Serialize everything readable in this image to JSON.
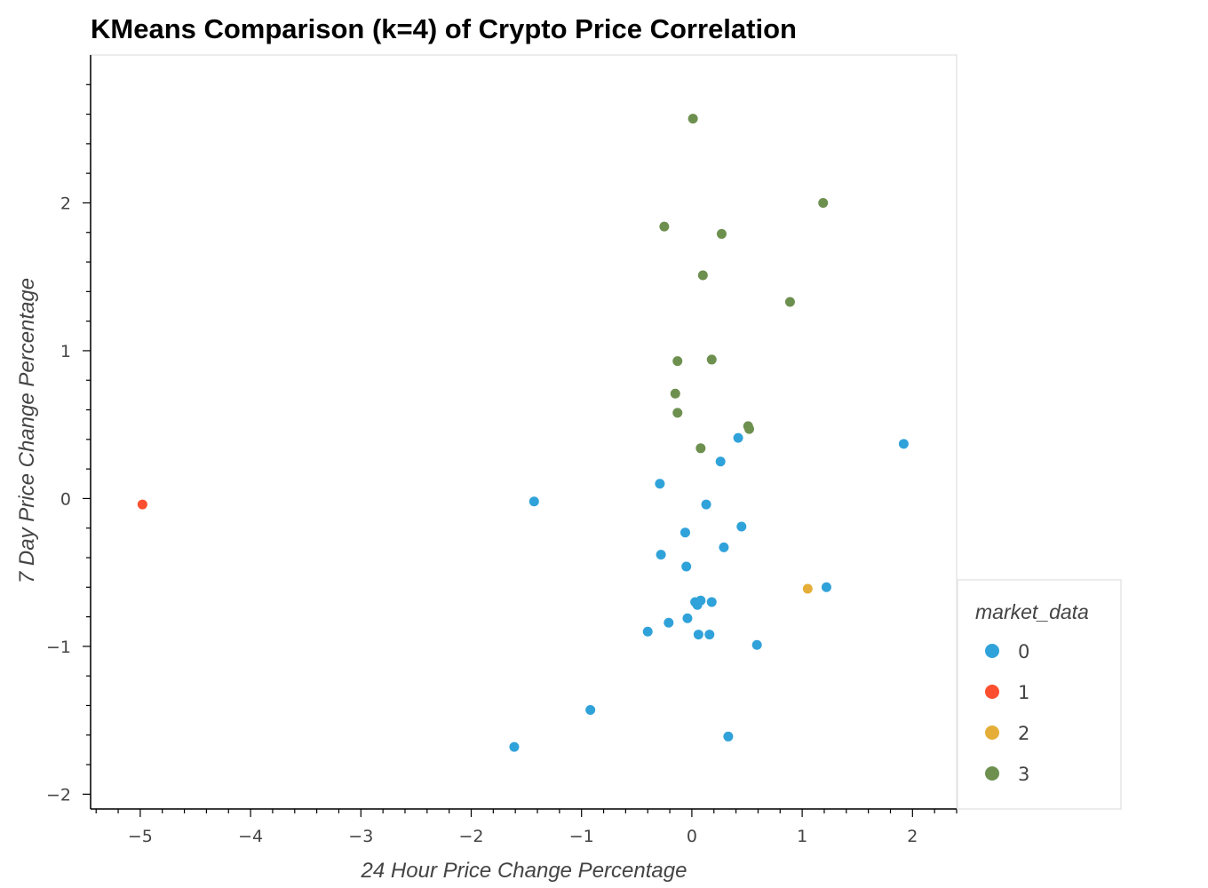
{
  "chart_data": {
    "type": "scatter",
    "title": "KMeans Comparison (k=4) of Crypto Price Correlation",
    "xlabel": "24 Hour Price Change Percentage",
    "ylabel": "7 Day Price Change Percentage",
    "xlim": [
      -5.45,
      2.4
    ],
    "ylim": [
      -2.1,
      3.0
    ],
    "x_ticks": [
      -5,
      -4,
      -3,
      -2,
      -1,
      0,
      1,
      2
    ],
    "y_ticks": [
      -2,
      -1,
      0,
      1,
      2
    ],
    "x_tick_labels": [
      "−5",
      "−4",
      "−3",
      "−2",
      "−1",
      "0",
      "1",
      "2"
    ],
    "y_tick_labels": [
      "−2",
      "−1",
      "0",
      "1",
      "2"
    ],
    "grid": false,
    "legend": {
      "title": "market_data",
      "placement": "right",
      "entries": [
        "0",
        "1",
        "2",
        "3"
      ]
    },
    "series": [
      {
        "name": "0",
        "color": "#30a2da",
        "points": [
          [
            1.92,
            0.37
          ],
          [
            1.22,
            -0.6
          ],
          [
            0.42,
            0.41
          ],
          [
            0.26,
            0.25
          ],
          [
            -0.29,
            0.1
          ],
          [
            0.13,
            -0.04
          ],
          [
            0.45,
            -0.19
          ],
          [
            -0.06,
            -0.23
          ],
          [
            0.29,
            -0.33
          ],
          [
            -0.28,
            -0.38
          ],
          [
            -0.05,
            -0.46
          ],
          [
            0.08,
            -0.69
          ],
          [
            0.03,
            -0.7
          ],
          [
            0.18,
            -0.7
          ],
          [
            0.05,
            -0.72
          ],
          [
            -0.04,
            -0.81
          ],
          [
            -0.21,
            -0.84
          ],
          [
            -0.4,
            -0.9
          ],
          [
            0.06,
            -0.92
          ],
          [
            0.16,
            -0.92
          ],
          [
            0.59,
            -0.99
          ],
          [
            -0.92,
            -1.43
          ],
          [
            0.33,
            -1.61
          ],
          [
            -1.61,
            -1.68
          ],
          [
            -1.43,
            -0.02
          ]
        ]
      },
      {
        "name": "1",
        "color": "#fc4f30",
        "points": [
          [
            -4.98,
            -0.04
          ]
        ]
      },
      {
        "name": "2",
        "color": "#e5ae38",
        "points": [
          [
            1.05,
            -0.61
          ]
        ]
      },
      {
        "name": "3",
        "color": "#6d904f",
        "points": [
          [
            0.01,
            2.57
          ],
          [
            1.19,
            2.0
          ],
          [
            -0.25,
            1.84
          ],
          [
            0.27,
            1.79
          ],
          [
            0.1,
            1.51
          ],
          [
            0.89,
            1.33
          ],
          [
            -0.13,
            0.93
          ],
          [
            0.18,
            0.94
          ],
          [
            -0.15,
            0.71
          ],
          [
            -0.13,
            0.58
          ],
          [
            0.51,
            0.49
          ],
          [
            0.52,
            0.47
          ],
          [
            0.08,
            0.34
          ]
        ]
      }
    ]
  }
}
